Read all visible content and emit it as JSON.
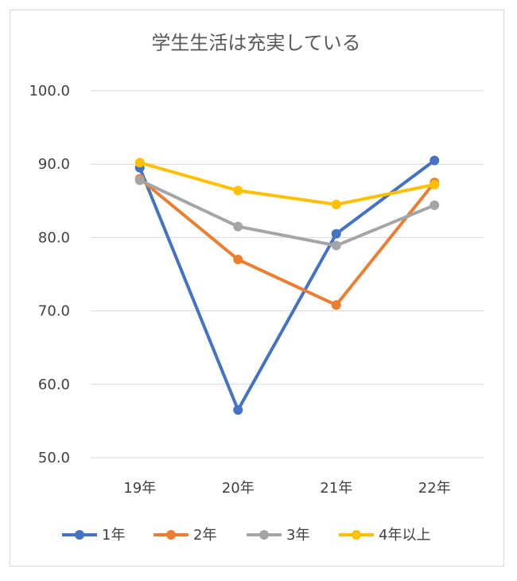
{
  "chart_data": {
    "type": "line",
    "title": "学生生活は充実している",
    "categories": [
      "19年",
      "20年",
      "21年",
      "22年"
    ],
    "ylim": [
      50,
      100
    ],
    "yticks": [
      "100.0",
      "90.0",
      "80.0",
      "70.0",
      "60.0",
      "50.0"
    ],
    "grid": true,
    "legend_position": "bottom",
    "series": [
      {
        "name": "1年",
        "color": "#4472c4",
        "values": [
          89.5,
          56.5,
          80.5,
          90.5
        ]
      },
      {
        "name": "2年",
        "color": "#ed7d31",
        "values": [
          88.0,
          77.0,
          70.8,
          87.5
        ]
      },
      {
        "name": "3年",
        "color": "#a5a5a5",
        "values": [
          87.8,
          81.5,
          78.9,
          84.4
        ]
      },
      {
        "name": "4年以上",
        "color": "#ffc000",
        "values": [
          90.2,
          86.4,
          84.5,
          87.2
        ]
      }
    ]
  }
}
